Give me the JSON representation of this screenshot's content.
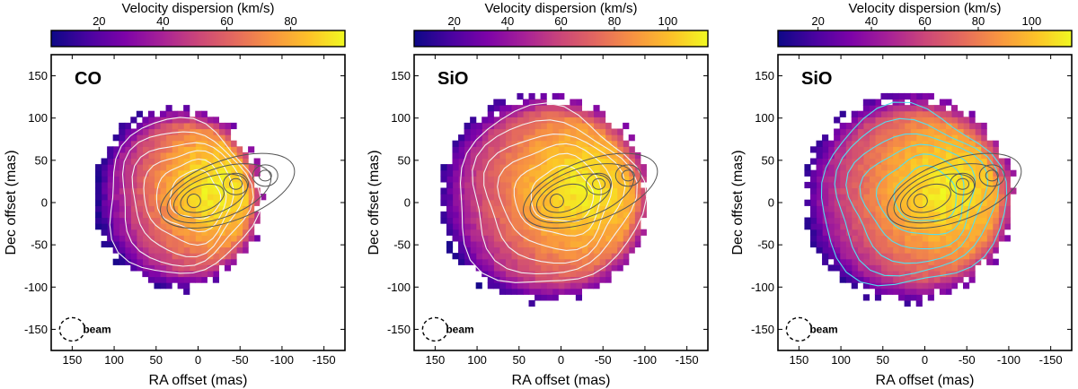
{
  "chart_data": [
    {
      "type": "heatmap",
      "panel_label": "CO",
      "colorbar": {
        "label": "Velocity dispersion (km/s)",
        "ticks": [
          20,
          40,
          60,
          80
        ],
        "range": [
          5,
          97
        ]
      },
      "xlabel": "RA offset (mas)",
      "ylabel": "Dec offset (mas)",
      "xlim": [
        175,
        -175
      ],
      "ylim": [
        -175,
        175
      ],
      "xticks": [
        150,
        100,
        50,
        0,
        -50,
        -100,
        -150
      ],
      "yticks": [
        150,
        100,
        50,
        0,
        -50,
        -100,
        -150
      ],
      "beam_label": "beam",
      "blob": {
        "center": [
          25,
          5
        ],
        "rx": 100,
        "ry": 105,
        "peak_value": 95
      },
      "overlay_contours": [
        "white",
        "dark-gray"
      ]
    },
    {
      "type": "heatmap",
      "panel_label": "SiO",
      "colorbar": {
        "label": "Velocity dispersion (km/s)",
        "ticks": [
          20,
          40,
          60,
          80,
          100
        ],
        "range": [
          5,
          115
        ]
      },
      "xlabel": "RA offset (mas)",
      "ylabel": "Dec offset (mas)",
      "xlim": [
        175,
        -175
      ],
      "ylim": [
        -175,
        175
      ],
      "xticks": [
        150,
        100,
        50,
        0,
        -50,
        -100,
        -150
      ],
      "yticks": [
        150,
        100,
        50,
        0,
        -50,
        -100,
        -150
      ],
      "beam_label": "beam",
      "blob": {
        "center": [
          20,
          5
        ],
        "rx": 125,
        "ry": 120,
        "peak_value": 112
      },
      "overlay_contours": [
        "white",
        "dark-gray"
      ]
    },
    {
      "type": "heatmap",
      "panel_label": "SiO",
      "colorbar": {
        "label": "Velocity dispersion (km/s)",
        "ticks": [
          20,
          40,
          60,
          80,
          100
        ],
        "range": [
          5,
          115
        ]
      },
      "xlabel": "RA offset (mas)",
      "ylabel": "Dec offset (mas)",
      "xlim": [
        175,
        -175
      ],
      "ylim": [
        -175,
        175
      ],
      "xticks": [
        150,
        100,
        50,
        0,
        -50,
        -100,
        -150
      ],
      "yticks": [
        150,
        100,
        50,
        0,
        -50,
        -100,
        -150
      ],
      "beam_label": "beam",
      "blob": {
        "center": [
          20,
          5
        ],
        "rx": 125,
        "ry": 120,
        "peak_value": 112
      },
      "overlay_contours": [
        "cyan",
        "dark-gray"
      ]
    }
  ],
  "colors": {
    "contour_white": "#f2f2f2",
    "contour_dark": "#555555",
    "contour_cyan": "#52e0f0"
  }
}
